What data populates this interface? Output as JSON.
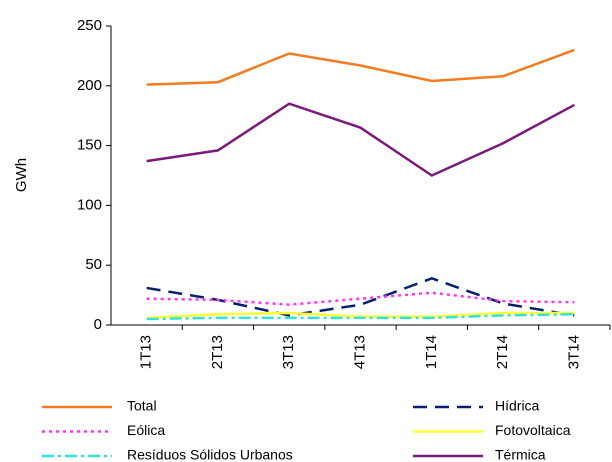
{
  "chart_data": {
    "type": "line",
    "categories": [
      "1T13",
      "2T13",
      "3T13",
      "4T13",
      "1T14",
      "2T14",
      "3T14"
    ],
    "ylabel": "GWh",
    "ylim": [
      0,
      250
    ],
    "yticks": [
      0,
      50,
      100,
      150,
      200,
      250
    ],
    "series": [
      {
        "name": "Total",
        "color": "#f47b20",
        "dash": "solid",
        "values": [
          201,
          203,
          227,
          217,
          204,
          208,
          230
        ]
      },
      {
        "name": "Hídrica",
        "color": "#0a1f6b",
        "dash": "long",
        "values": [
          31,
          21,
          8,
          17,
          39,
          18,
          8
        ]
      },
      {
        "name": "Eólica",
        "color": "#ff33ff",
        "dash": "dot",
        "values": [
          22,
          21,
          17,
          22,
          27,
          20,
          19
        ]
      },
      {
        "name": "Fotovoltaica",
        "color": "#ffff33",
        "dash": "solid",
        "values": [
          6,
          9,
          10,
          7,
          7,
          10,
          10
        ]
      },
      {
        "name": "Resíduos Sólidos Urbanos",
        "color": "#33e0e0",
        "dash": "dashdot",
        "values": [
          5,
          6,
          6,
          6,
          6,
          8,
          9
        ]
      },
      {
        "name": "Térmica",
        "color": "#7a1a7a",
        "dash": "solid",
        "values": [
          137,
          146,
          185,
          165,
          125,
          152,
          184
        ]
      }
    ]
  }
}
